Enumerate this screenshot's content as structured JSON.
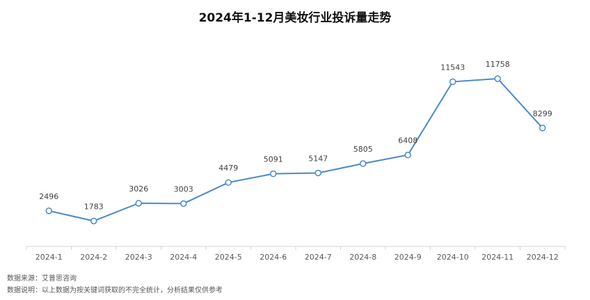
{
  "chart_data": {
    "type": "line",
    "title": "2024年1-12月美妆行业投诉量走势",
    "categories": [
      "2024-1",
      "2024-2",
      "2024-3",
      "2024-4",
      "2024-5",
      "2024-6",
      "2024-7",
      "2024-8",
      "2024-9",
      "2024-10",
      "2024-11",
      "2024-12"
    ],
    "series": [
      {
        "name": "投诉量",
        "color": "#4a88cc",
        "values": [
          2496,
          1783,
          3026,
          3003,
          4479,
          5091,
          5147,
          5805,
          6408,
          11543,
          11758,
          8299
        ]
      }
    ],
    "source": "数据来源：艾普思咨询",
    "note": "数据说明：以上数据为按关键词获取的不完全统计，分析结果仅供参考"
  }
}
